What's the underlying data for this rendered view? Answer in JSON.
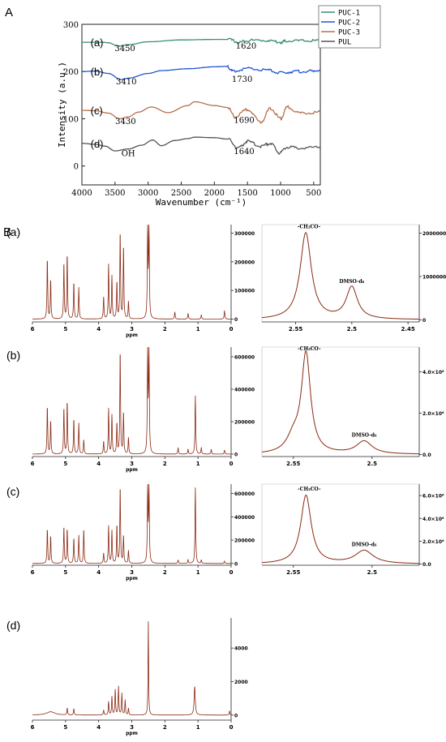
{
  "panel_labels": {
    "A": "A",
    "B": "B"
  },
  "colors": {
    "PUC-1": "#3a8f6e",
    "PUC-2": "#1f55cf",
    "PUC-3": "#b5704a",
    "PUL": "#555555",
    "nmr": "#8b2a14",
    "axis": "#222222"
  },
  "chart_data": [
    {
      "id": "ftir",
      "type": "line",
      "xlabel": "Wavenumber (cm⁻¹)",
      "ylabel": "Intensity (a.u.)",
      "xlim": [
        4000,
        400
      ],
      "ylim": [
        -40,
        300
      ],
      "xticks": [
        4000,
        3500,
        3000,
        2500,
        2000,
        1500,
        1000,
        500
      ],
      "yticks": [
        0,
        100,
        200,
        300
      ],
      "legend": {
        "position": "top-right",
        "entries": [
          "PUC-1",
          "PUC-2",
          "PUC-3",
          "PUL"
        ]
      },
      "series": [
        {
          "name": "PUC-1",
          "label": "(a)",
          "baseline": 262,
          "x": [
            4000,
            3700,
            3600,
            3450,
            3300,
            3000,
            2500,
            2000,
            1800,
            1620,
            1500,
            1200,
            1000,
            900,
            600,
            400
          ],
          "y": [
            262,
            262,
            261,
            254,
            257,
            263,
            267,
            268,
            268,
            262,
            266,
            266,
            262,
            265,
            265,
            265
          ]
        },
        {
          "name": "PUC-2",
          "label": "(b)",
          "baseline": 200,
          "x": [
            4000,
            3800,
            3600,
            3410,
            3300,
            3000,
            2800,
            2400,
            2000,
            1800,
            1730,
            1500,
            1200,
            1000,
            800,
            600,
            400
          ],
          "y": [
            200,
            201,
            196,
            183,
            186,
            196,
            202,
            206,
            210,
            211,
            201,
            206,
            203,
            197,
            200,
            200,
            203
          ]
        },
        {
          "name": "PUC-3",
          "label": "(c)",
          "baseline": 118,
          "x": [
            4000,
            3800,
            3600,
            3430,
            3300,
            3150,
            2950,
            2700,
            2400,
            2300,
            2000,
            1800,
            1690,
            1500,
            1300,
            1150,
            1000,
            900,
            700,
            400
          ],
          "y": [
            118,
            117,
            112,
            100,
            104,
            114,
            125,
            113,
            128,
            136,
            128,
            124,
            104,
            120,
            93,
            122,
            100,
            125,
            112,
            114
          ]
        },
        {
          "name": "PUL",
          "label": "(d)",
          "baseline": 48,
          "x": [
            4000,
            3800,
            3650,
            3500,
            3300,
            3100,
            2930,
            2800,
            2600,
            2400,
            2300,
            2000,
            1800,
            1640,
            1500,
            1300,
            1150,
            1020,
            900,
            700,
            400
          ],
          "y": [
            48,
            46,
            42,
            32,
            36,
            44,
            55,
            43,
            54,
            58,
            61,
            60,
            57,
            38,
            52,
            42,
            48,
            28,
            40,
            38,
            40
          ]
        }
      ],
      "annotations": [
        {
          "text": "3450",
          "x": 3350,
          "y": 250
        },
        {
          "text": "1620",
          "x": 1520,
          "y": 255
        },
        {
          "text": "3410",
          "x": 3330,
          "y": 180
        },
        {
          "text": "1730",
          "x": 1580,
          "y": 185
        },
        {
          "text": "3430",
          "x": 3340,
          "y": 96
        },
        {
          "text": "1690",
          "x": 1550,
          "y": 98
        },
        {
          "text": "OH",
          "x": 3300,
          "y": 28
        },
        {
          "text": "1640",
          "x": 1550,
          "y": 32
        }
      ]
    },
    {
      "id": "nmr-a-full",
      "type": "line",
      "panel": "(a)",
      "xlabel": "ppm",
      "xlim": [
        6,
        0
      ],
      "xticks": [
        6,
        5,
        4,
        3,
        2,
        1,
        0
      ],
      "ylim": [
        -10000,
        330000
      ],
      "yticks": [
        0,
        100000,
        200000,
        300000
      ],
      "peaks": [
        {
          "ppm": 5.55,
          "h": 215000
        },
        {
          "ppm": 5.45,
          "h": 140000
        },
        {
          "ppm": 5.05,
          "h": 200000
        },
        {
          "ppm": 4.95,
          "h": 230000
        },
        {
          "ppm": 4.75,
          "h": 130000
        },
        {
          "ppm": 4.6,
          "h": 110000
        },
        {
          "ppm": 3.85,
          "h": 80000
        },
        {
          "ppm": 3.7,
          "h": 190000
        },
        {
          "ppm": 3.6,
          "h": 150000
        },
        {
          "ppm": 3.45,
          "h": 130000
        },
        {
          "ppm": 3.35,
          "h": 310000
        },
        {
          "ppm": 3.25,
          "h": 260000
        },
        {
          "ppm": 3.1,
          "h": 60000
        },
        {
          "ppm": 2.52,
          "h": 330000
        },
        {
          "ppm": 2.48,
          "h": 330000
        },
        {
          "ppm": 1.7,
          "h": 25000
        },
        {
          "ppm": 1.3,
          "h": 20000
        },
        {
          "ppm": 0.9,
          "h": 15000
        },
        {
          "ppm": 0.2,
          "h": 30000
        }
      ]
    },
    {
      "id": "nmr-a-zoom",
      "type": "line",
      "xlim": [
        2.58,
        2.44
      ],
      "xticks": [
        2.55,
        2.5,
        2.45
      ],
      "ylim": [
        -50000,
        2200000
      ],
      "yticks": [
        0,
        1000000,
        2000000
      ],
      "ytick_labels": [
        "0",
        "1000000",
        "2000000"
      ],
      "peaks": [
        {
          "ppm": 2.541,
          "h": 2000000,
          "w": 0.006,
          "label": "-CH₂CO-"
        },
        {
          "ppm": 2.5,
          "h": 740000,
          "w": 0.006,
          "label": "DMSO-d₆"
        }
      ]
    },
    {
      "id": "nmr-b-full",
      "type": "line",
      "panel": "(b)",
      "xlabel": "ppm",
      "xlim": [
        6,
        0
      ],
      "xticks": [
        6,
        5,
        4,
        3,
        2,
        1,
        0
      ],
      "ylim": [
        -15000,
        660000
      ],
      "yticks": [
        0,
        200000,
        400000,
        600000
      ],
      "peaks": [
        {
          "ppm": 5.55,
          "h": 300000
        },
        {
          "ppm": 5.45,
          "h": 210000
        },
        {
          "ppm": 5.05,
          "h": 290000
        },
        {
          "ppm": 4.95,
          "h": 330000
        },
        {
          "ppm": 4.75,
          "h": 220000
        },
        {
          "ppm": 4.6,
          "h": 190000
        },
        {
          "ppm": 4.45,
          "h": 90000
        },
        {
          "ppm": 3.85,
          "h": 80000
        },
        {
          "ppm": 3.7,
          "h": 280000
        },
        {
          "ppm": 3.6,
          "h": 240000
        },
        {
          "ppm": 3.45,
          "h": 190000
        },
        {
          "ppm": 3.35,
          "h": 650000
        },
        {
          "ppm": 3.25,
          "h": 260000
        },
        {
          "ppm": 3.1,
          "h": 100000
        },
        {
          "ppm": 2.52,
          "h": 650000
        },
        {
          "ppm": 2.48,
          "h": 650000
        },
        {
          "ppm": 1.6,
          "h": 40000
        },
        {
          "ppm": 1.3,
          "h": 30000
        },
        {
          "ppm": 1.08,
          "h": 360000
        },
        {
          "ppm": 0.9,
          "h": 40000
        },
        {
          "ppm": 0.6,
          "h": 30000
        },
        {
          "ppm": 0.2,
          "h": 25000
        }
      ]
    },
    {
      "id": "nmr-b-zoom",
      "type": "line",
      "xlim": [
        2.57,
        2.47
      ],
      "xticks": [
        2.55,
        2.5
      ],
      "ylim": [
        -100000,
        5200000
      ],
      "yticks": [
        0,
        2000000,
        4000000
      ],
      "ytick_labels": [
        "0.0",
        "2.0×10⁶",
        "4.0×10⁶"
      ],
      "peaks": [
        {
          "ppm": 2.542,
          "h": 4800000,
          "w": 0.0035,
          "label": "-CH₂CO-"
        },
        {
          "ppm": 2.55,
          "h": 700000,
          "w": 0.005
        },
        {
          "ppm": 2.505,
          "h": 620000,
          "w": 0.006,
          "label": "DMSO-d₆"
        }
      ]
    },
    {
      "id": "nmr-c-full",
      "type": "line",
      "panel": "(c)",
      "xlabel": "ppm",
      "xlim": [
        6,
        0
      ],
      "xticks": [
        6,
        5,
        4,
        3,
        2,
        1,
        0
      ],
      "ylim": [
        -15000,
        680000
      ],
      "yticks": [
        0,
        200000,
        400000,
        600000
      ],
      "peaks": [
        {
          "ppm": 5.55,
          "h": 300000
        },
        {
          "ppm": 5.45,
          "h": 240000
        },
        {
          "ppm": 5.05,
          "h": 320000
        },
        {
          "ppm": 4.95,
          "h": 300000
        },
        {
          "ppm": 4.75,
          "h": 220000
        },
        {
          "ppm": 4.6,
          "h": 240000
        },
        {
          "ppm": 4.45,
          "h": 300000
        },
        {
          "ppm": 3.85,
          "h": 90000
        },
        {
          "ppm": 3.7,
          "h": 320000
        },
        {
          "ppm": 3.6,
          "h": 280000
        },
        {
          "ppm": 3.45,
          "h": 330000
        },
        {
          "ppm": 3.35,
          "h": 670000
        },
        {
          "ppm": 3.25,
          "h": 240000
        },
        {
          "ppm": 3.1,
          "h": 110000
        },
        {
          "ppm": 2.52,
          "h": 670000
        },
        {
          "ppm": 2.48,
          "h": 670000
        },
        {
          "ppm": 1.6,
          "h": 30000
        },
        {
          "ppm": 1.3,
          "h": 30000
        },
        {
          "ppm": 1.08,
          "h": 650000
        },
        {
          "ppm": 0.9,
          "h": 30000
        },
        {
          "ppm": 0.2,
          "h": 20000
        }
      ]
    },
    {
      "id": "nmr-c-zoom",
      "type": "line",
      "xlim": [
        2.57,
        2.47
      ],
      "xticks": [
        2.55,
        2.5
      ],
      "ylim": [
        -100000,
        7000000
      ],
      "yticks": [
        0,
        2000000,
        4000000,
        6000000
      ],
      "ytick_labels": [
        "0.0",
        "2.0×10⁶",
        "4.0×10⁶",
        "6.0×10⁶"
      ],
      "peaks": [
        {
          "ppm": 2.542,
          "h": 6000000,
          "w": 0.004,
          "label": "-CH₂CO-"
        },
        {
          "ppm": 2.505,
          "h": 1150000,
          "w": 0.007,
          "label": "DMSO-d₆"
        }
      ]
    },
    {
      "id": "nmr-d-full",
      "type": "line",
      "panel": "(d)",
      "xlabel": "ppm",
      "xlim": [
        6,
        0
      ],
      "xticks": [
        6,
        5,
        4,
        3,
        2,
        1,
        0
      ],
      "ylim": [
        -300,
        5800
      ],
      "yticks": [
        0,
        2000,
        4000
      ],
      "peaks": [
        {
          "ppm": 5.45,
          "h": 200,
          "w": 0.15
        },
        {
          "ppm": 4.95,
          "h": 420
        },
        {
          "ppm": 4.75,
          "h": 380
        },
        {
          "ppm": 3.85,
          "h": 300
        },
        {
          "ppm": 3.7,
          "h": 800
        },
        {
          "ppm": 3.6,
          "h": 1100
        },
        {
          "ppm": 3.5,
          "h": 1500
        },
        {
          "ppm": 3.4,
          "h": 1700
        },
        {
          "ppm": 3.3,
          "h": 1300
        },
        {
          "ppm": 3.2,
          "h": 900
        },
        {
          "ppm": 3.1,
          "h": 400
        },
        {
          "ppm": 2.5,
          "h": 5600,
          "w": 0.01
        },
        {
          "ppm": 1.1,
          "h": 1700,
          "w": 0.02
        },
        {
          "ppm": 0.05,
          "h": 250
        }
      ]
    }
  ]
}
